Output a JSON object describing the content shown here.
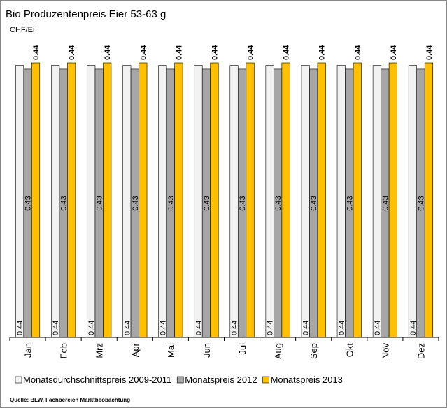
{
  "chart_data": {
    "type": "bar",
    "title": "Bio Produzentenpreis Eier 53-63 g",
    "y_label": "CHF/Ei",
    "source": "Quelle: BLW, Fachbereich Marktbeobachtung",
    "categories": [
      "Jan",
      "Feb",
      "Mrz",
      "Apr",
      "Mai",
      "Jun",
      "Jul",
      "Aug",
      "Sep",
      "Okt",
      "Nov",
      "Dez"
    ],
    "series": [
      {
        "name": "Monatsdurchschnittspreis 2009-2011",
        "color": "#f2f2f2",
        "values": [
          0.436,
          0.436,
          0.436,
          0.436,
          0.436,
          0.436,
          0.436,
          0.436,
          0.436,
          0.436,
          0.436,
          0.436
        ],
        "value_labels": [
          "0.44",
          "0.44",
          "0.44",
          "0.44",
          "0.44",
          "0.44",
          "0.44",
          "0.44",
          "0.44",
          "0.44",
          "0.44",
          "0.44"
        ]
      },
      {
        "name": "Monatspreis 2012",
        "color": "#a6a6a6",
        "values": [
          0.43,
          0.43,
          0.43,
          0.43,
          0.43,
          0.43,
          0.43,
          0.43,
          0.43,
          0.43,
          0.43,
          0.43
        ]
      },
      {
        "name": "Monatspreis 2013",
        "color": "#ffc000",
        "values": [
          0.44,
          0.44,
          0.44,
          0.44,
          0.44,
          0.44,
          0.44,
          0.44,
          0.44,
          0.44,
          0.44,
          0.44
        ]
      }
    ],
    "legend": "bottom"
  }
}
